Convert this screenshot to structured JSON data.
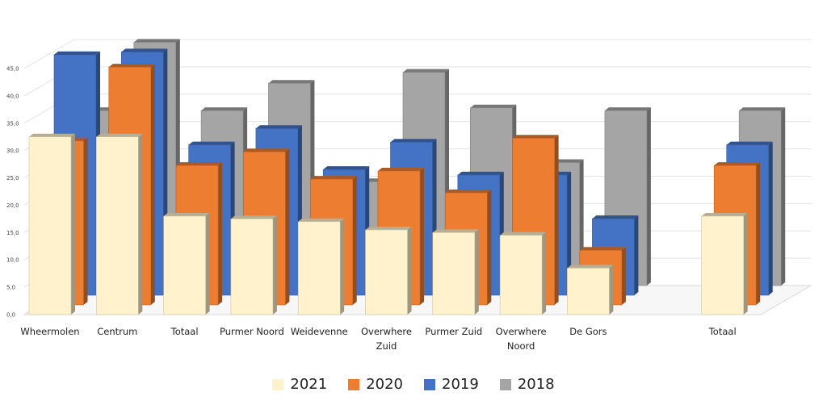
{
  "chart_data": {
    "type": "bar",
    "title": "",
    "xlabel": "",
    "ylabel": "",
    "ylim": [
      0,
      45
    ],
    "yticks": [
      "0,0",
      "5,0",
      "10,0",
      "15,0",
      "20,0",
      "25,0",
      "30,0",
      "35,0",
      "40,0",
      "45,0"
    ],
    "grid": true,
    "legend_position": "bottom",
    "categories": [
      [
        "Wheermolen"
      ],
      [
        "Centrum"
      ],
      [
        "Totaal"
      ],
      [
        "Purmer Noord"
      ],
      [
        "Weidevenne"
      ],
      [
        "Overwhere",
        "Zuid"
      ],
      [
        "Purmer Zuid"
      ],
      [
        "Overwhere",
        "Noord"
      ],
      [
        "De Gors"
      ],
      [
        "Totaal"
      ]
    ],
    "series": [
      {
        "name": "2018",
        "color": "#A5A5A5",
        "values": [
          32.0,
          44.5,
          32.0,
          37.0,
          19.0,
          39.0,
          32.5,
          22.5,
          32.0,
          32.0
        ]
      },
      {
        "name": "2019",
        "color": "#4472C4",
        "values": [
          44.0,
          44.5,
          27.5,
          30.5,
          23.0,
          28.0,
          22.0,
          22.0,
          14.0,
          27.5
        ]
      },
      {
        "name": "2020",
        "color": "#ED7D31",
        "values": [
          30.0,
          43.5,
          25.5,
          28.0,
          23.0,
          24.5,
          20.5,
          30.5,
          10.0,
          25.5
        ]
      },
      {
        "name": "2021",
        "color": "#FFF2CC",
        "values": [
          32.5,
          32.5,
          18.0,
          17.5,
          17.0,
          15.5,
          15.0,
          14.5,
          8.5,
          18.0
        ]
      }
    ],
    "legend_order": [
      "2021",
      "2020",
      "2019",
      "2018"
    ]
  }
}
